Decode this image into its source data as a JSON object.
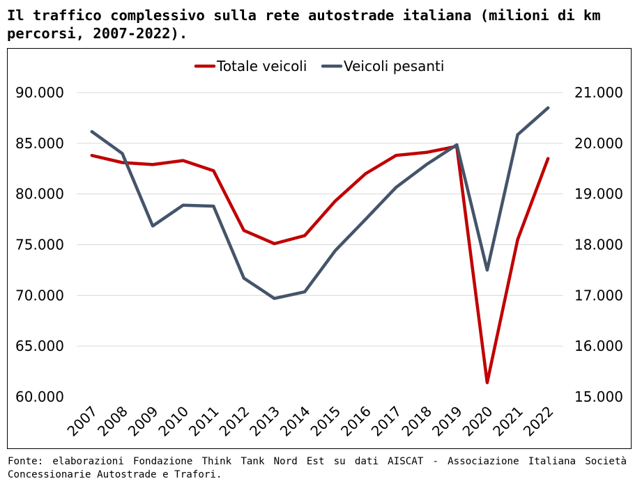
{
  "title": "Il traffico complessivo sulla rete autostrade italiana (milioni di km percorsi, 2007-2022).",
  "source": "Fonte: elaborazioni Fondazione Think Tank Nord Est su dati AISCAT - Associazione Italiana Società Concessionarie Autostrade e Trafori.",
  "chart_data": {
    "type": "line",
    "title": "",
    "xlabel": "",
    "ylabel": "",
    "categories": [
      "2007",
      "2008",
      "2009",
      "2010",
      "2011",
      "2012",
      "2013",
      "2014",
      "2015",
      "2016",
      "2017",
      "2018",
      "2019",
      "2020",
      "2021",
      "2022"
    ],
    "y_left": {
      "lim": [
        60000,
        90000
      ],
      "ticks": [
        60000,
        65000,
        70000,
        75000,
        80000,
        85000,
        90000
      ],
      "tick_labels": [
        "60.000",
        "65.000",
        "70.000",
        "75.000",
        "80.000",
        "85.000",
        "90.000"
      ]
    },
    "y_right": {
      "lim": [
        15000,
        21000
      ],
      "ticks": [
        15000,
        16000,
        17000,
        18000,
        19000,
        20000,
        21000
      ],
      "tick_labels": [
        "15.000",
        "16.000",
        "17.000",
        "18.000",
        "19.000",
        "20.000",
        "21.000"
      ]
    },
    "grid": true,
    "legend_position": "top-center",
    "series": [
      {
        "name": "Totale veicoli",
        "axis": "left",
        "color": "#c00000",
        "values": [
          83800,
          83100,
          82900,
          83300,
          82300,
          76400,
          75100,
          75900,
          79300,
          82000,
          83800,
          84100,
          84700,
          61400,
          75500,
          83500
        ]
      },
      {
        "name": "Veicoli pesanti",
        "axis": "right",
        "color": "#44546a",
        "values": [
          20230,
          19800,
          18370,
          18780,
          18760,
          17340,
          16940,
          17070,
          17880,
          18500,
          19130,
          19580,
          19970,
          17500,
          20170,
          20700
        ]
      }
    ]
  }
}
